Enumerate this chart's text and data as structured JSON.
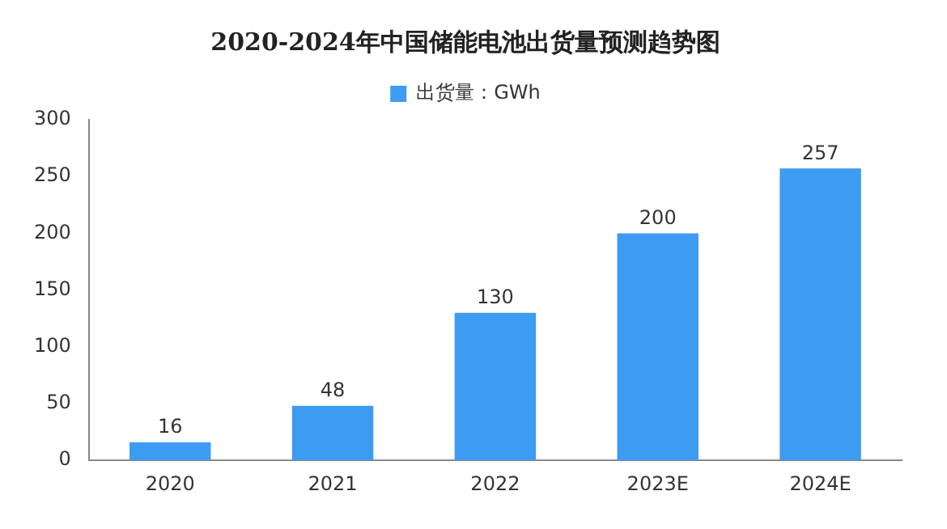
{
  "chart_data": {
    "type": "bar",
    "title": "2020-2024年中国储能电池出货量预测趋势图",
    "categories": [
      "2020",
      "2021",
      "2022",
      "2023E",
      "2024E"
    ],
    "series": [
      {
        "name": "出货量：GWh",
        "color": "#3d9bf2",
        "values": [
          16,
          48,
          130,
          200,
          257
        ]
      }
    ],
    "ylim": [
      0,
      300
    ],
    "yticks": [
      0,
      50,
      100,
      150,
      200,
      250,
      300
    ],
    "grid": false,
    "legend": "top",
    "data_labels": true
  }
}
